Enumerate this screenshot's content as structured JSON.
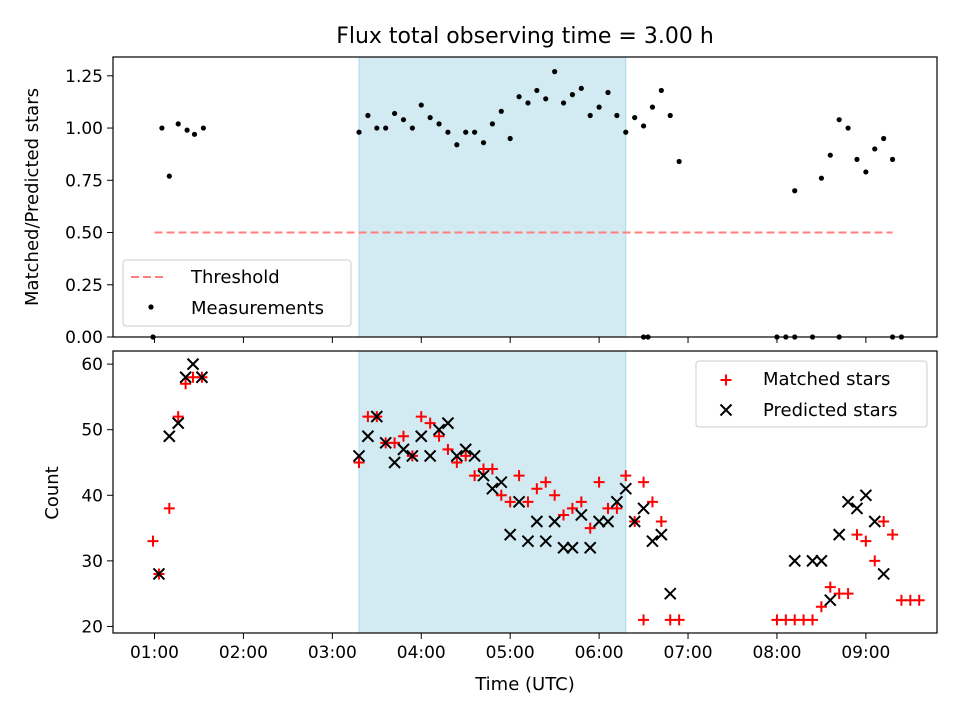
{
  "chart_data": [
    {
      "type": "scatter",
      "panel": "top",
      "title": "Flux total observing time = 3.00 h",
      "xlabel": "",
      "ylabel": "Matched/Predicted stars",
      "ylim": [
        0,
        1.34
      ],
      "xlim": [
        "00:32",
        "09:48"
      ],
      "xtick_labels": [
        "01:00",
        "02:00",
        "03:00",
        "04:00",
        "05:00",
        "06:00",
        "07:00",
        "08:00",
        "09:00"
      ],
      "yticks": [
        0.0,
        0.25,
        0.5,
        0.75,
        1.0,
        1.25
      ],
      "ytick_labels": [
        "0.00",
        "0.25",
        "0.50",
        "0.75",
        "1.00",
        "1.25"
      ],
      "grid": false,
      "legend_position": "lower-left",
      "shaded_interval": {
        "start": "03:18",
        "end": "06:18",
        "color": "#add8e6"
      },
      "threshold": {
        "name": "Threshold",
        "value": 0.5,
        "x_start": "01:00",
        "x_end": "09:18",
        "color": "#ff7f7f",
        "style": "dashed"
      },
      "series": [
        {
          "name": "Measurements",
          "color": "#000000",
          "marker": "dot",
          "points": [
            [
              "00:59",
              0.0
            ],
            [
              "01:05",
              1.0
            ],
            [
              "01:10",
              0.77
            ],
            [
              "01:16",
              1.02
            ],
            [
              "01:22",
              0.99
            ],
            [
              "01:27",
              0.97
            ],
            [
              "01:33",
              1.0
            ],
            [
              "03:18",
              0.98
            ],
            [
              "03:24",
              1.06
            ],
            [
              "03:30",
              1.0
            ],
            [
              "03:36",
              1.0
            ],
            [
              "03:42",
              1.07
            ],
            [
              "03:48",
              1.04
            ],
            [
              "03:54",
              1.0
            ],
            [
              "04:00",
              1.11
            ],
            [
              "04:06",
              1.05
            ],
            [
              "04:12",
              1.02
            ],
            [
              "04:18",
              0.98
            ],
            [
              "04:24",
              0.92
            ],
            [
              "04:30",
              0.98
            ],
            [
              "04:36",
              0.98
            ],
            [
              "04:42",
              0.93
            ],
            [
              "04:48",
              1.02
            ],
            [
              "04:54",
              1.08
            ],
            [
              "05:00",
              0.95
            ],
            [
              "05:06",
              1.15
            ],
            [
              "05:12",
              1.12
            ],
            [
              "05:18",
              1.18
            ],
            [
              "05:24",
              1.14
            ],
            [
              "05:30",
              1.27
            ],
            [
              "05:36",
              1.12
            ],
            [
              "05:42",
              1.16
            ],
            [
              "05:48",
              1.19
            ],
            [
              "05:54",
              1.06
            ],
            [
              "06:00",
              1.1
            ],
            [
              "06:06",
              1.17
            ],
            [
              "06:12",
              1.06
            ],
            [
              "06:18",
              0.98
            ],
            [
              "06:24",
              1.05
            ],
            [
              "06:30",
              1.01
            ],
            [
              "06:36",
              1.1
            ],
            [
              "06:42",
              1.18
            ],
            [
              "06:48",
              1.06
            ],
            [
              "06:54",
              0.84
            ],
            [
              "06:30",
              0.0
            ],
            [
              "06:33",
              0.0
            ],
            [
              "08:00",
              0.0
            ],
            [
              "08:06",
              0.0
            ],
            [
              "08:12",
              0.0
            ],
            [
              "08:24",
              0.0
            ],
            [
              "08:42",
              0.0
            ],
            [
              "08:12",
              0.7
            ],
            [
              "08:30",
              0.76
            ],
            [
              "08:36",
              0.87
            ],
            [
              "08:42",
              1.04
            ],
            [
              "08:48",
              1.0
            ],
            [
              "08:54",
              0.85
            ],
            [
              "09:00",
              0.79
            ],
            [
              "09:06",
              0.9
            ],
            [
              "09:12",
              0.95
            ],
            [
              "09:18",
              0.85
            ],
            [
              "09:18",
              0.0
            ],
            [
              "09:24",
              0.0
            ]
          ]
        }
      ]
    },
    {
      "type": "scatter",
      "panel": "bottom",
      "title": "",
      "xlabel": "Time (UTC)",
      "ylabel": "Count",
      "ylim": [
        19,
        62
      ],
      "xlim": [
        "00:32",
        "09:48"
      ],
      "xtick_labels": [
        "01:00",
        "02:00",
        "03:00",
        "04:00",
        "05:00",
        "06:00",
        "07:00",
        "08:00",
        "09:00"
      ],
      "yticks": [
        20,
        30,
        40,
        50,
        60
      ],
      "ytick_labels": [
        "20",
        "30",
        "40",
        "50",
        "60"
      ],
      "grid": false,
      "legend_position": "top-right",
      "shaded_interval": {
        "start": "03:18",
        "end": "06:18",
        "color": "#add8e6"
      },
      "series": [
        {
          "name": "Matched stars",
          "color": "#ff0000",
          "marker": "plus",
          "points": [
            [
              "00:59",
              33
            ],
            [
              "01:03",
              28
            ],
            [
              "01:10",
              38
            ],
            [
              "01:16",
              52
            ],
            [
              "01:21",
              57
            ],
            [
              "01:26",
              58
            ],
            [
              "01:32",
              58
            ],
            [
              "03:18",
              45
            ],
            [
              "03:24",
              52
            ],
            [
              "03:30",
              52
            ],
            [
              "03:36",
              48
            ],
            [
              "03:42",
              48
            ],
            [
              "03:48",
              49
            ],
            [
              "03:54",
              46
            ],
            [
              "04:00",
              52
            ],
            [
              "04:06",
              51
            ],
            [
              "04:12",
              49
            ],
            [
              "04:18",
              47
            ],
            [
              "04:24",
              45
            ],
            [
              "04:30",
              46
            ],
            [
              "04:36",
              43
            ],
            [
              "04:42",
              44
            ],
            [
              "04:48",
              44
            ],
            [
              "04:54",
              40
            ],
            [
              "05:00",
              39
            ],
            [
              "05:06",
              43
            ],
            [
              "05:12",
              39
            ],
            [
              "05:18",
              41
            ],
            [
              "05:24",
              42
            ],
            [
              "05:30",
              40
            ],
            [
              "05:36",
              37
            ],
            [
              "05:42",
              38
            ],
            [
              "05:48",
              39
            ],
            [
              "05:54",
              35
            ],
            [
              "06:00",
              42
            ],
            [
              "06:06",
              38
            ],
            [
              "06:12",
              38
            ],
            [
              "06:18",
              43
            ],
            [
              "06:24",
              36
            ],
            [
              "06:30",
              42
            ],
            [
              "06:36",
              39
            ],
            [
              "06:42",
              36
            ],
            [
              "06:48",
              21
            ],
            [
              "06:54",
              21
            ],
            [
              "06:30",
              21
            ],
            [
              "08:00",
              21
            ],
            [
              "08:06",
              21
            ],
            [
              "08:12",
              21
            ],
            [
              "08:18",
              21
            ],
            [
              "08:24",
              21
            ],
            [
              "08:30",
              23
            ],
            [
              "08:36",
              26
            ],
            [
              "08:42",
              25
            ],
            [
              "08:48",
              25
            ],
            [
              "08:54",
              34
            ],
            [
              "09:00",
              33
            ],
            [
              "09:06",
              30
            ],
            [
              "09:12",
              36
            ],
            [
              "09:18",
              34
            ],
            [
              "09:24",
              24
            ],
            [
              "09:30",
              24
            ],
            [
              "09:36",
              24
            ]
          ]
        },
        {
          "name": "Predicted stars",
          "color": "#000000",
          "marker": "x",
          "points": [
            [
              "01:03",
              28
            ],
            [
              "01:10",
              49
            ],
            [
              "01:16",
              51
            ],
            [
              "01:21",
              58
            ],
            [
              "01:26",
              60
            ],
            [
              "01:32",
              58
            ],
            [
              "03:18",
              46
            ],
            [
              "03:24",
              49
            ],
            [
              "03:30",
              52
            ],
            [
              "03:36",
              48
            ],
            [
              "03:42",
              45
            ],
            [
              "03:48",
              47
            ],
            [
              "03:54",
              46
            ],
            [
              "04:00",
              49
            ],
            [
              "04:06",
              46
            ],
            [
              "04:12",
              50
            ],
            [
              "04:18",
              51
            ],
            [
              "04:24",
              46
            ],
            [
              "04:30",
              47
            ],
            [
              "04:36",
              46
            ],
            [
              "04:42",
              43
            ],
            [
              "04:48",
              41
            ],
            [
              "04:54",
              42
            ],
            [
              "05:00",
              34
            ],
            [
              "05:06",
              39
            ],
            [
              "05:12",
              33
            ],
            [
              "05:18",
              36
            ],
            [
              "05:24",
              33
            ],
            [
              "05:30",
              36
            ],
            [
              "05:36",
              32
            ],
            [
              "05:42",
              32
            ],
            [
              "05:48",
              37
            ],
            [
              "05:54",
              32
            ],
            [
              "06:00",
              36
            ],
            [
              "06:06",
              36
            ],
            [
              "06:12",
              39
            ],
            [
              "06:18",
              41
            ],
            [
              "06:24",
              36
            ],
            [
              "06:30",
              38
            ],
            [
              "06:36",
              33
            ],
            [
              "06:42",
              34
            ],
            [
              "06:48",
              25
            ],
            [
              "08:12",
              30
            ],
            [
              "08:24",
              30
            ],
            [
              "08:30",
              30
            ],
            [
              "08:36",
              24
            ],
            [
              "08:42",
              34
            ],
            [
              "08:48",
              39
            ],
            [
              "08:54",
              38
            ],
            [
              "09:00",
              40
            ],
            [
              "09:06",
              36
            ],
            [
              "09:12",
              28
            ]
          ]
        }
      ]
    }
  ]
}
